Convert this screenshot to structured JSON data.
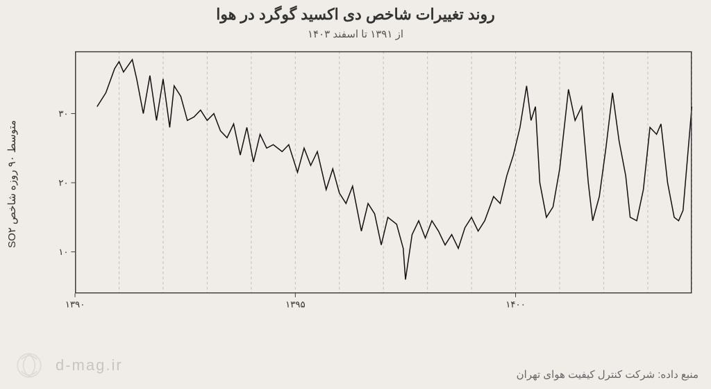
{
  "title": "روند تغییرات شاخص دی اکسید گوگرد در هوا",
  "subtitle": "از ۱۳۹۱ تا اسفند ۱۴۰۳",
  "ylabel": "متوسط ۹۰ روزه شاخص SO۲",
  "source": "منبع داده: شرکت کنترل کیفیت هوای تهران",
  "brand": "d-mag.ir",
  "chart": {
    "type": "line",
    "background_color": "#f0ede8",
    "line_color": "#111111",
    "line_width": 1.6,
    "grid_color": "#bbbbbb",
    "grid_dash": "4 4",
    "frame_color": "#333333",
    "xlim": [
      1390,
      1404
    ],
    "ylim": [
      4,
      39
    ],
    "yticks": [
      10,
      20,
      30
    ],
    "ytick_labels": [
      "۱۰",
      "۲۰",
      "۳۰"
    ],
    "xticks": [
      1390,
      1395,
      1400
    ],
    "xtick_labels": [
      "۱۳۹۰",
      "۱۳۹۵",
      "۱۴۰۰"
    ],
    "vgrid": [
      1391,
      1392,
      1393,
      1394,
      1395,
      1396,
      1397,
      1398,
      1399,
      1400,
      1401,
      1402,
      1403,
      1404
    ],
    "title_fontsize": 22,
    "subtitle_fontsize": 15,
    "label_fontsize": 15,
    "tick_fontsize": 14,
    "series": [
      {
        "x": 1390.5,
        "y": 31.0
      },
      {
        "x": 1390.7,
        "y": 33.0
      },
      {
        "x": 1390.9,
        "y": 36.5
      },
      {
        "x": 1391.0,
        "y": 37.5
      },
      {
        "x": 1391.1,
        "y": 36.0
      },
      {
        "x": 1391.3,
        "y": 37.8
      },
      {
        "x": 1391.4,
        "y": 35.0
      },
      {
        "x": 1391.55,
        "y": 30.0
      },
      {
        "x": 1391.7,
        "y": 35.5
      },
      {
        "x": 1391.85,
        "y": 29.0
      },
      {
        "x": 1392.0,
        "y": 35.0
      },
      {
        "x": 1392.15,
        "y": 28.0
      },
      {
        "x": 1392.25,
        "y": 34.0
      },
      {
        "x": 1392.4,
        "y": 32.5
      },
      {
        "x": 1392.55,
        "y": 29.0
      },
      {
        "x": 1392.7,
        "y": 29.5
      },
      {
        "x": 1392.85,
        "y": 30.5
      },
      {
        "x": 1393.0,
        "y": 29.0
      },
      {
        "x": 1393.15,
        "y": 30.0
      },
      {
        "x": 1393.3,
        "y": 27.5
      },
      {
        "x": 1393.45,
        "y": 26.5
      },
      {
        "x": 1393.6,
        "y": 28.5
      },
      {
        "x": 1393.75,
        "y": 24.0
      },
      {
        "x": 1393.9,
        "y": 28.0
      },
      {
        "x": 1394.05,
        "y": 23.0
      },
      {
        "x": 1394.2,
        "y": 27.0
      },
      {
        "x": 1394.35,
        "y": 25.0
      },
      {
        "x": 1394.5,
        "y": 25.5
      },
      {
        "x": 1394.7,
        "y": 24.5
      },
      {
        "x": 1394.85,
        "y": 25.5
      },
      {
        "x": 1395.05,
        "y": 21.5
      },
      {
        "x": 1395.2,
        "y": 25.0
      },
      {
        "x": 1395.35,
        "y": 22.5
      },
      {
        "x": 1395.5,
        "y": 24.5
      },
      {
        "x": 1395.7,
        "y": 19.0
      },
      {
        "x": 1395.85,
        "y": 22.0
      },
      {
        "x": 1396.0,
        "y": 18.5
      },
      {
        "x": 1396.15,
        "y": 17.0
      },
      {
        "x": 1396.3,
        "y": 19.5
      },
      {
        "x": 1396.5,
        "y": 13.0
      },
      {
        "x": 1396.65,
        "y": 17.0
      },
      {
        "x": 1396.8,
        "y": 15.5
      },
      {
        "x": 1396.95,
        "y": 11.0
      },
      {
        "x": 1397.1,
        "y": 15.0
      },
      {
        "x": 1397.3,
        "y": 14.0
      },
      {
        "x": 1397.45,
        "y": 10.5
      },
      {
        "x": 1397.5,
        "y": 6.0
      },
      {
        "x": 1397.65,
        "y": 12.5
      },
      {
        "x": 1397.8,
        "y": 14.5
      },
      {
        "x": 1397.95,
        "y": 12.0
      },
      {
        "x": 1398.1,
        "y": 14.5
      },
      {
        "x": 1398.25,
        "y": 13.0
      },
      {
        "x": 1398.4,
        "y": 11.0
      },
      {
        "x": 1398.55,
        "y": 12.5
      },
      {
        "x": 1398.7,
        "y": 10.5
      },
      {
        "x": 1398.85,
        "y": 13.5
      },
      {
        "x": 1399.0,
        "y": 15.0
      },
      {
        "x": 1399.15,
        "y": 13.0
      },
      {
        "x": 1399.3,
        "y": 14.5
      },
      {
        "x": 1399.5,
        "y": 18.0
      },
      {
        "x": 1399.65,
        "y": 17.0
      },
      {
        "x": 1399.8,
        "y": 21.0
      },
      {
        "x": 1399.95,
        "y": 24.0
      },
      {
        "x": 1400.1,
        "y": 28.0
      },
      {
        "x": 1400.25,
        "y": 34.0
      },
      {
        "x": 1400.35,
        "y": 29.0
      },
      {
        "x": 1400.45,
        "y": 31.0
      },
      {
        "x": 1400.55,
        "y": 20.0
      },
      {
        "x": 1400.7,
        "y": 15.0
      },
      {
        "x": 1400.85,
        "y": 16.5
      },
      {
        "x": 1401.0,
        "y": 22.0
      },
      {
        "x": 1401.2,
        "y": 33.5
      },
      {
        "x": 1401.35,
        "y": 29.0
      },
      {
        "x": 1401.5,
        "y": 31.0
      },
      {
        "x": 1401.65,
        "y": 20.0
      },
      {
        "x": 1401.75,
        "y": 14.5
      },
      {
        "x": 1401.9,
        "y": 18.0
      },
      {
        "x": 1402.05,
        "y": 25.0
      },
      {
        "x": 1402.2,
        "y": 33.0
      },
      {
        "x": 1402.35,
        "y": 26.0
      },
      {
        "x": 1402.5,
        "y": 21.0
      },
      {
        "x": 1402.6,
        "y": 15.0
      },
      {
        "x": 1402.75,
        "y": 14.5
      },
      {
        "x": 1402.9,
        "y": 19.0
      },
      {
        "x": 1403.05,
        "y": 28.0
      },
      {
        "x": 1403.2,
        "y": 27.0
      },
      {
        "x": 1403.3,
        "y": 28.5
      },
      {
        "x": 1403.45,
        "y": 20.0
      },
      {
        "x": 1403.6,
        "y": 15.0
      },
      {
        "x": 1403.7,
        "y": 14.5
      },
      {
        "x": 1403.8,
        "y": 16.0
      },
      {
        "x": 1404.0,
        "y": 31.0
      }
    ]
  }
}
